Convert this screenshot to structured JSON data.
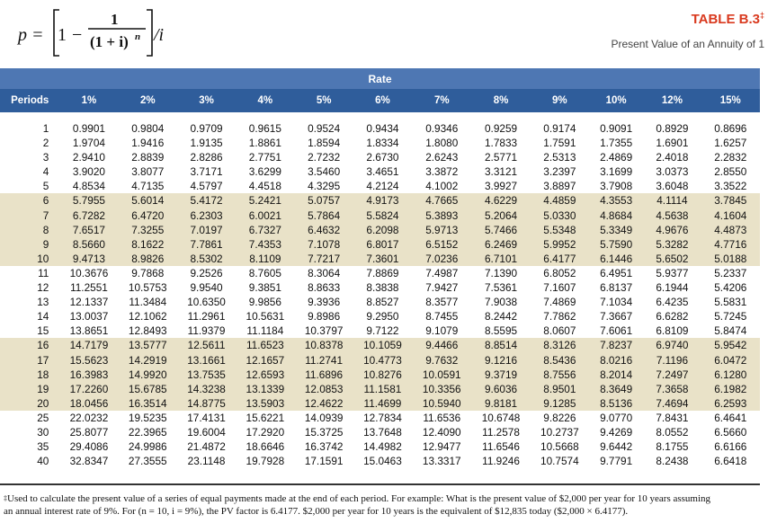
{
  "formula": {
    "lhs": "p =",
    "one": "1",
    "numerator": "1",
    "denominator": "(1 + i)",
    "exponent": "n",
    "divisor": "/i",
    "minus": "−"
  },
  "title": {
    "name": "TABLE B.3",
    "mark": "‡",
    "subtitle": "Present Value of an Annuity of 1"
  },
  "rate_label": "Rate",
  "columns": [
    "Periods",
    "1%",
    "2%",
    "3%",
    "4%",
    "5%",
    "6%",
    "7%",
    "8%",
    "9%",
    "10%",
    "12%",
    "15%"
  ],
  "rows": [
    [
      "1",
      "0.9901",
      "0.9804",
      "0.9709",
      "0.9615",
      "0.9524",
      "0.9434",
      "0.9346",
      "0.9259",
      "0.9174",
      "0.9091",
      "0.8929",
      "0.8696"
    ],
    [
      "2",
      "1.9704",
      "1.9416",
      "1.9135",
      "1.8861",
      "1.8594",
      "1.8334",
      "1.8080",
      "1.7833",
      "1.7591",
      "1.7355",
      "1.6901",
      "1.6257"
    ],
    [
      "3",
      "2.9410",
      "2.8839",
      "2.8286",
      "2.7751",
      "2.7232",
      "2.6730",
      "2.6243",
      "2.5771",
      "2.5313",
      "2.4869",
      "2.4018",
      "2.2832"
    ],
    [
      "4",
      "3.9020",
      "3.8077",
      "3.7171",
      "3.6299",
      "3.5460",
      "3.4651",
      "3.3872",
      "3.3121",
      "3.2397",
      "3.1699",
      "3.0373",
      "2.8550"
    ],
    [
      "5",
      "4.8534",
      "4.7135",
      "4.5797",
      "4.4518",
      "4.3295",
      "4.2124",
      "4.1002",
      "3.9927",
      "3.8897",
      "3.7908",
      "3.6048",
      "3.3522"
    ],
    [
      "6",
      "5.7955",
      "5.6014",
      "5.4172",
      "5.2421",
      "5.0757",
      "4.9173",
      "4.7665",
      "4.6229",
      "4.4859",
      "4.3553",
      "4.1114",
      "3.7845"
    ],
    [
      "7",
      "6.7282",
      "6.4720",
      "6.2303",
      "6.0021",
      "5.7864",
      "5.5824",
      "5.3893",
      "5.2064",
      "5.0330",
      "4.8684",
      "4.5638",
      "4.1604"
    ],
    [
      "8",
      "7.6517",
      "7.3255",
      "7.0197",
      "6.7327",
      "6.4632",
      "6.2098",
      "5.9713",
      "5.7466",
      "5.5348",
      "5.3349",
      "4.9676",
      "4.4873"
    ],
    [
      "9",
      "8.5660",
      "8.1622",
      "7.7861",
      "7.4353",
      "7.1078",
      "6.8017",
      "6.5152",
      "6.2469",
      "5.9952",
      "5.7590",
      "5.3282",
      "4.7716"
    ],
    [
      "10",
      "9.4713",
      "8.9826",
      "8.5302",
      "8.1109",
      "7.7217",
      "7.3601",
      "7.0236",
      "6.7101",
      "6.4177",
      "6.1446",
      "5.6502",
      "5.0188"
    ],
    [
      "11",
      "10.3676",
      "9.7868",
      "9.2526",
      "8.7605",
      "8.3064",
      "7.8869",
      "7.4987",
      "7.1390",
      "6.8052",
      "6.4951",
      "5.9377",
      "5.2337"
    ],
    [
      "12",
      "11.2551",
      "10.5753",
      "9.9540",
      "9.3851",
      "8.8633",
      "8.3838",
      "7.9427",
      "7.5361",
      "7.1607",
      "6.8137",
      "6.1944",
      "5.4206"
    ],
    [
      "13",
      "12.1337",
      "11.3484",
      "10.6350",
      "9.9856",
      "9.3936",
      "8.8527",
      "8.3577",
      "7.9038",
      "7.4869",
      "7.1034",
      "6.4235",
      "5.5831"
    ],
    [
      "14",
      "13.0037",
      "12.1062",
      "11.2961",
      "10.5631",
      "9.8986",
      "9.2950",
      "8.7455",
      "8.2442",
      "7.7862",
      "7.3667",
      "6.6282",
      "5.7245"
    ],
    [
      "15",
      "13.8651",
      "12.8493",
      "11.9379",
      "11.1184",
      "10.3797",
      "9.7122",
      "9.1079",
      "8.5595",
      "8.0607",
      "7.6061",
      "6.8109",
      "5.8474"
    ],
    [
      "16",
      "14.7179",
      "13.5777",
      "12.5611",
      "11.6523",
      "10.8378",
      "10.1059",
      "9.4466",
      "8.8514",
      "8.3126",
      "7.8237",
      "6.9740",
      "5.9542"
    ],
    [
      "17",
      "15.5623",
      "14.2919",
      "13.1661",
      "12.1657",
      "11.2741",
      "10.4773",
      "9.7632",
      "9.1216",
      "8.5436",
      "8.0216",
      "7.1196",
      "6.0472"
    ],
    [
      "18",
      "16.3983",
      "14.9920",
      "13.7535",
      "12.6593",
      "11.6896",
      "10.8276",
      "10.0591",
      "9.3719",
      "8.7556",
      "8.2014",
      "7.2497",
      "6.1280"
    ],
    [
      "19",
      "17.2260",
      "15.6785",
      "14.3238",
      "13.1339",
      "12.0853",
      "11.1581",
      "10.3356",
      "9.6036",
      "8.9501",
      "8.3649",
      "7.3658",
      "6.1982"
    ],
    [
      "20",
      "18.0456",
      "16.3514",
      "14.8775",
      "13.5903",
      "12.4622",
      "11.4699",
      "10.5940",
      "9.8181",
      "9.1285",
      "8.5136",
      "7.4694",
      "6.2593"
    ],
    [
      "25",
      "22.0232",
      "19.5235",
      "17.4131",
      "15.6221",
      "14.0939",
      "12.7834",
      "11.6536",
      "10.6748",
      "9.8226",
      "9.0770",
      "7.8431",
      "6.4641"
    ],
    [
      "30",
      "25.8077",
      "22.3965",
      "19.6004",
      "17.2920",
      "15.3725",
      "13.7648",
      "12.4090",
      "11.2578",
      "10.2737",
      "9.4269",
      "8.0552",
      "6.5660"
    ],
    [
      "35",
      "29.4086",
      "24.9986",
      "21.4872",
      "18.6646",
      "16.3742",
      "14.4982",
      "12.9477",
      "11.6546",
      "10.5668",
      "9.6442",
      "8.1755",
      "6.6166"
    ],
    [
      "40",
      "32.8347",
      "27.3555",
      "23.1148",
      "19.7928",
      "17.1591",
      "15.0463",
      "13.3317",
      "11.9246",
      "10.7574",
      "9.7791",
      "8.2438",
      "6.6418"
    ]
  ],
  "footnote": {
    "mark": "‡",
    "line1": "Used to calculate the present value of a series of equal payments made at the end of each period. For example: What is the present value of $2,000 per year for 10 years assuming",
    "line2": "an annual interest rate of 9%. For (n = 10, i = 9%), the PV factor is 6.4177. $2,000 per year for 10 years is the equivalent of $12,835 today ($2,000 × 6.4177)."
  }
}
